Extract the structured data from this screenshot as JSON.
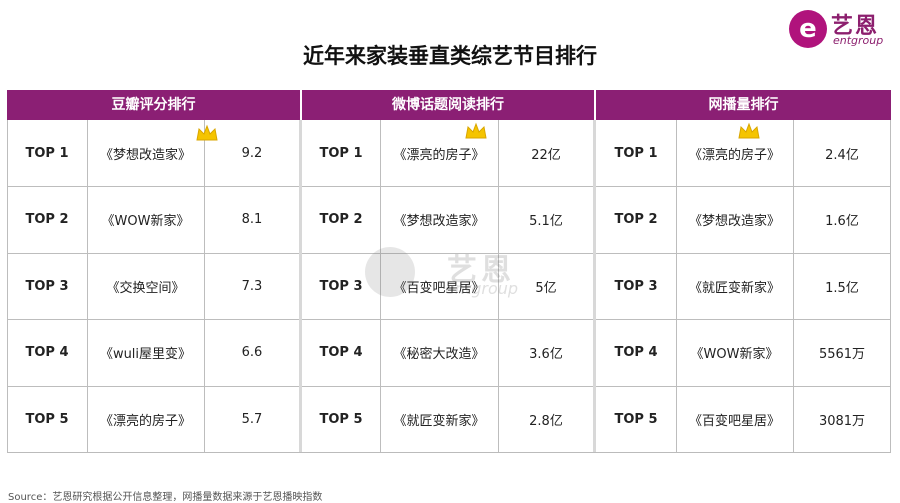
{
  "logo": {
    "mark": "e",
    "cn": "艺恩",
    "en": "entgroup"
  },
  "title": "近年来家装垂直类综艺节目排行",
  "sections": [
    {
      "header": "豆瓣评分排行",
      "rows": [
        {
          "rank": "TOP 1",
          "name": "《梦想改造家》",
          "value": "9.2"
        },
        {
          "rank": "TOP 2",
          "name": "《WOW新家》",
          "value": "8.1"
        },
        {
          "rank": "TOP 3",
          "name": "《交换空间》",
          "value": "7.3"
        },
        {
          "rank": "TOP 4",
          "name": "《wuli屋里变》",
          "value": "6.6"
        },
        {
          "rank": "TOP 5",
          "name": "《漂亮的房子》",
          "value": "5.7"
        }
      ]
    },
    {
      "header": "微博话题阅读排行",
      "rows": [
        {
          "rank": "TOP 1",
          "name": "《漂亮的房子》",
          "value": "22亿"
        },
        {
          "rank": "TOP 2",
          "name": "《梦想改造家》",
          "value": "5.1亿"
        },
        {
          "rank": "TOP 3",
          "name": "《百变吧星居》",
          "value": "5亿"
        },
        {
          "rank": "TOP 4",
          "name": "《秘密大改造》",
          "value": "3.6亿"
        },
        {
          "rank": "TOP 5",
          "name": "《就匠变新家》",
          "value": "2.8亿"
        }
      ]
    },
    {
      "header": "网播量排行",
      "rows": [
        {
          "rank": "TOP 1",
          "name": "《漂亮的房子》",
          "value": "2.4亿"
        },
        {
          "rank": "TOP 2",
          "name": "《梦想改造家》",
          "value": "1.6亿"
        },
        {
          "rank": "TOP 3",
          "name": "《就匠变新家》",
          "value": "1.5亿"
        },
        {
          "rank": "TOP 4",
          "name": "《WOW新家》",
          "value": "5561万"
        },
        {
          "rank": "TOP 5",
          "name": "《百变吧星居》",
          "value": "3081万"
        }
      ]
    }
  ],
  "watermark": {
    "cn": "艺恩",
    "en": "entgroup"
  },
  "source": "Source：艺恩研究根据公开信息整理，网播量数据来源于艺恩播映指数",
  "colors": {
    "header_bg": "#8b1f74",
    "brand": "#b0137c",
    "crown": "#f5c400"
  }
}
